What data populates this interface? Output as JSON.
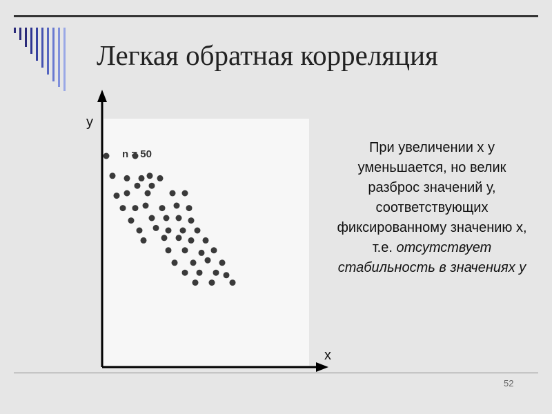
{
  "slide": {
    "title": "Легкая обратная корреляция",
    "page_number": "52",
    "description": {
      "part1": "При увеличении х  у уменьшается, но велик разброс значений у, соответствующих фиксированному значению х, т.е.",
      "part2": "отсутствует стабильность в значениях у"
    }
  },
  "chart_data": {
    "type": "scatter",
    "xlabel": "x",
    "ylabel": "y",
    "annotation": "n = 50",
    "ticks_shown": false,
    "point_color": "#3a3a3a",
    "axis_color": "#000000",
    "points": [
      [
        2,
        85
      ],
      [
        16,
        85
      ],
      [
        5,
        77
      ],
      [
        12,
        76
      ],
      [
        19,
        76
      ],
      [
        23,
        77
      ],
      [
        28,
        76
      ],
      [
        17,
        73
      ],
      [
        24,
        73
      ],
      [
        7,
        69
      ],
      [
        12,
        70
      ],
      [
        22,
        70
      ],
      [
        34,
        70
      ],
      [
        40,
        70
      ],
      [
        10,
        64
      ],
      [
        16,
        64
      ],
      [
        21,
        65
      ],
      [
        29,
        64
      ],
      [
        36,
        65
      ],
      [
        42,
        64
      ],
      [
        14,
        59
      ],
      [
        24,
        60
      ],
      [
        31,
        60
      ],
      [
        37,
        60
      ],
      [
        43,
        59
      ],
      [
        18,
        55
      ],
      [
        26,
        56
      ],
      [
        32,
        55
      ],
      [
        39,
        55
      ],
      [
        46,
        55
      ],
      [
        20,
        51
      ],
      [
        30,
        52
      ],
      [
        37,
        52
      ],
      [
        43,
        51
      ],
      [
        50,
        51
      ],
      [
        32,
        47
      ],
      [
        40,
        47
      ],
      [
        48,
        46
      ],
      [
        54,
        47
      ],
      [
        35,
        42
      ],
      [
        44,
        42
      ],
      [
        51,
        43
      ],
      [
        58,
        42
      ],
      [
        40,
        38
      ],
      [
        47,
        38
      ],
      [
        55,
        38
      ],
      [
        60,
        37
      ],
      [
        45,
        34
      ],
      [
        53,
        34
      ],
      [
        63,
        34
      ]
    ]
  }
}
